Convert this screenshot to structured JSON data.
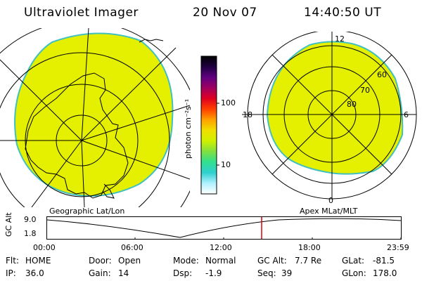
{
  "header": {
    "title": "Ultraviolet Imager",
    "date": "20 Nov 07",
    "time": "14:40:50 UT"
  },
  "colorbar": {
    "unit_label": "photon cm⁻²s⁻¹",
    "ticks": [
      "100",
      "10"
    ],
    "colors": [
      "#ffffff",
      "#b0f0ff",
      "#30d0d0",
      "#30e090",
      "#80e040",
      "#d0f000",
      "#f0e000",
      "#ffa000",
      "#ff4000",
      "#e00020",
      "#a00060",
      "#600080",
      "#200040",
      "#000000"
    ]
  },
  "geo_map": {
    "caption": "Geographic Lat/Lon",
    "fill_color": "#e4f000",
    "edge_color": "#40c0c0"
  },
  "polar_map": {
    "caption": "Apex MLat/MLT",
    "mlt_labels": {
      "top": "12",
      "left": "18",
      "right": "6",
      "bottom": "0"
    },
    "mlat_labels": [
      "60",
      "70",
      "80"
    ]
  },
  "altitude_plot": {
    "ylabel": "GC Alt",
    "ytick_top": "9.0",
    "ytick_bottom": "1.8",
    "xticks": [
      "00:00",
      "06:00",
      "12:00",
      "18:00",
      "23:59"
    ],
    "marker_color": "#e00000"
  },
  "status": {
    "flt_label": "Flt:",
    "flt_value": "HOME",
    "ip_label": "IP:",
    "ip_value": "36.0",
    "door_label": "Door:",
    "door_value": "Open",
    "gain_label": "Gain:",
    "gain_value": "14",
    "mode_label": "Mode:",
    "mode_value": "Normal",
    "dsp_label": "Dsp:",
    "dsp_value": "-1.9",
    "gcalt_label": "GC Alt:",
    "gcalt_value": "7.7 Re",
    "seq_label": "Seq:",
    "seq_value": "39",
    "glat_label": "GLat:",
    "glat_value": "-81.5",
    "glon_label": "GLon:",
    "glon_value": "178.0"
  }
}
